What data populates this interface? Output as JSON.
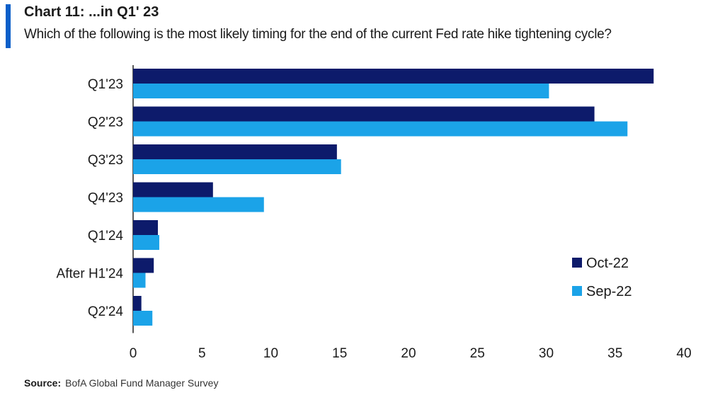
{
  "header": {
    "title": "Chart 11: ...in Q1' 23",
    "subtitle": "Which of the following is the most likely timing for the end of the current Fed rate hike tightening cycle?"
  },
  "source": {
    "label": "Source:",
    "text": "BofA Global Fund Manager Survey"
  },
  "colors": {
    "accent": "#0a5fc9",
    "series_dark": "#0d1b6b",
    "series_light": "#1ba3e8"
  },
  "chart_data": {
    "type": "bar",
    "orientation": "horizontal",
    "title": "",
    "xlabel": "",
    "ylabel": "",
    "categories": [
      "Q1'23",
      "Q2'23",
      "Q3'23",
      "Q4'23",
      "Q1'24",
      "After H1'24",
      "Q2'24"
    ],
    "series": [
      {
        "name": "Oct-22",
        "color": "#0d1b6b",
        "values": [
          37.8,
          33.5,
          14.8,
          5.8,
          1.8,
          1.5,
          0.6
        ]
      },
      {
        "name": "Sep-22",
        "color": "#1ba3e8",
        "values": [
          30.2,
          35.9,
          15.1,
          9.5,
          1.9,
          0.9,
          1.4
        ]
      }
    ],
    "xlim": [
      0,
      40
    ],
    "xticks": [
      0,
      5,
      10,
      15,
      20,
      25,
      30,
      35,
      40
    ],
    "grid": false,
    "legend_position": "bottom-right"
  }
}
